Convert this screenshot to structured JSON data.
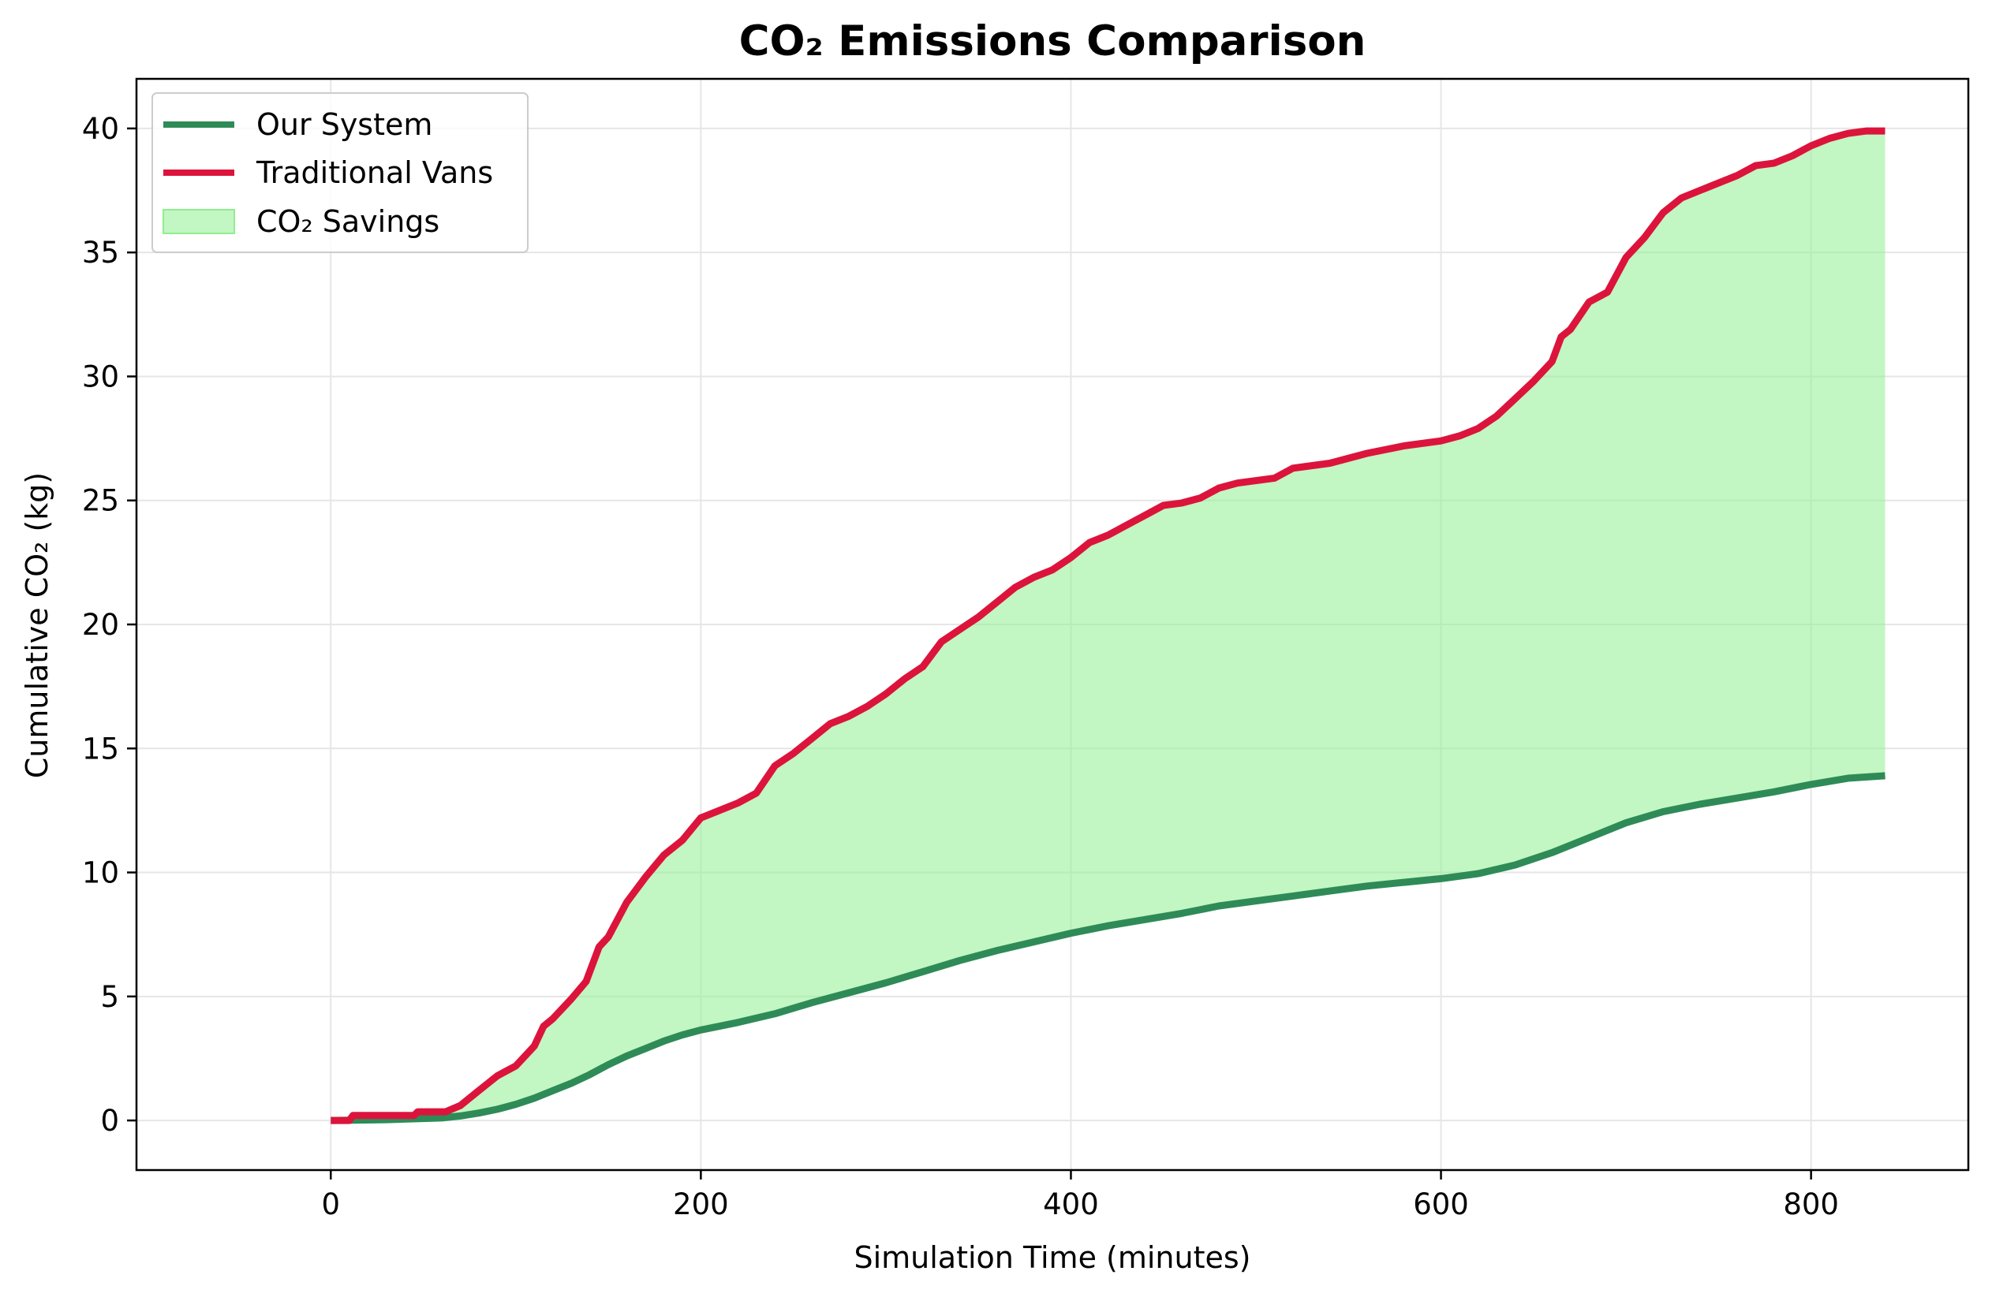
{
  "chart_data": {
    "type": "line",
    "title": "CO₂ Emissions Comparison",
    "xlabel": "Simulation Time (minutes)",
    "ylabel": "Cumulative CO₂ (kg)",
    "xlim": [
      -105,
      885
    ],
    "ylim": [
      -2,
      42
    ],
    "xticks": [
      0,
      200,
      400,
      600,
      800
    ],
    "yticks": [
      0,
      5,
      10,
      15,
      20,
      25,
      30,
      35,
      40
    ],
    "grid": true,
    "legend_position": "top-left",
    "series": [
      {
        "name": "Our System",
        "color": "#2e8b57",
        "x": [
          0,
          30,
          60,
          70,
          80,
          90,
          100,
          110,
          120,
          130,
          140,
          150,
          160,
          170,
          180,
          190,
          200,
          220,
          240,
          260,
          280,
          300,
          320,
          340,
          360,
          380,
          400,
          420,
          440,
          460,
          480,
          500,
          520,
          540,
          560,
          580,
          600,
          620,
          640,
          660,
          680,
          700,
          720,
          740,
          760,
          780,
          800,
          820,
          840
        ],
        "values": [
          0.0,
          0.03,
          0.1,
          0.18,
          0.3,
          0.45,
          0.65,
          0.9,
          1.2,
          1.5,
          1.85,
          2.25,
          2.6,
          2.9,
          3.2,
          3.45,
          3.65,
          3.95,
          4.3,
          4.75,
          5.15,
          5.55,
          6.0,
          6.45,
          6.85,
          7.2,
          7.55,
          7.85,
          8.1,
          8.35,
          8.65,
          8.85,
          9.05,
          9.25,
          9.45,
          9.6,
          9.75,
          9.95,
          10.3,
          10.8,
          11.4,
          12.0,
          12.45,
          12.75,
          13.0,
          13.25,
          13.55,
          13.8,
          13.9
        ]
      },
      {
        "name": "Traditional Vans",
        "color": "#dc143c",
        "x": [
          0,
          10,
          12,
          45,
          47,
          62,
          70,
          80,
          90,
          100,
          110,
          115,
          120,
          130,
          138,
          145,
          150,
          160,
          170,
          180,
          190,
          200,
          210,
          220,
          230,
          240,
          250,
          260,
          270,
          280,
          290,
          300,
          310,
          320,
          330,
          340,
          350,
          360,
          370,
          380,
          390,
          400,
          410,
          420,
          430,
          440,
          450,
          460,
          470,
          480,
          490,
          500,
          510,
          520,
          540,
          560,
          580,
          600,
          610,
          620,
          630,
          640,
          650,
          660,
          665,
          670,
          680,
          690,
          700,
          710,
          720,
          730,
          740,
          750,
          760,
          770,
          780,
          790,
          800,
          810,
          820,
          830,
          840
        ],
        "values": [
          0.0,
          0.0,
          0.2,
          0.2,
          0.35,
          0.35,
          0.6,
          1.2,
          1.8,
          2.2,
          3.0,
          3.8,
          4.1,
          4.9,
          5.6,
          7.0,
          7.4,
          8.8,
          9.8,
          10.7,
          11.3,
          12.2,
          12.5,
          12.8,
          13.2,
          14.3,
          14.8,
          15.4,
          16.0,
          16.3,
          16.7,
          17.2,
          17.8,
          18.3,
          19.3,
          19.8,
          20.3,
          20.9,
          21.5,
          21.9,
          22.2,
          22.7,
          23.3,
          23.6,
          24.0,
          24.4,
          24.8,
          24.9,
          25.1,
          25.5,
          25.7,
          25.8,
          25.9,
          26.3,
          26.5,
          26.9,
          27.2,
          27.4,
          27.6,
          27.9,
          28.4,
          29.1,
          29.8,
          30.6,
          31.6,
          31.9,
          33.0,
          33.4,
          34.8,
          35.6,
          36.6,
          37.2,
          37.5,
          37.8,
          38.1,
          38.5,
          38.6,
          38.9,
          39.3,
          39.6,
          39.8,
          39.9,
          39.9
        ]
      }
    ],
    "fill_between": {
      "name": "CO₂ Savings",
      "color": "#90ee90",
      "between": [
        "Traditional Vans",
        "Our System"
      ]
    }
  }
}
